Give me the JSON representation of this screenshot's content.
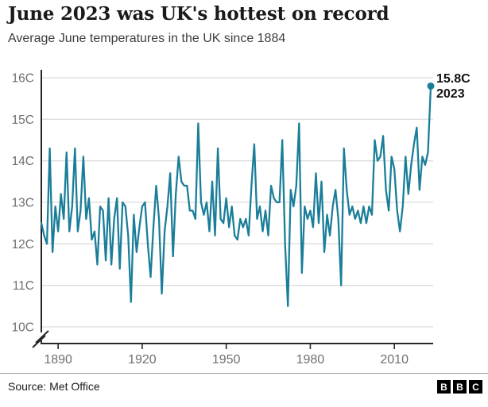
{
  "header": {
    "title": "June 2023 was UK's hottest on record",
    "subtitle": "Average June temperatures in the UK since 1884"
  },
  "chart_data": {
    "type": "line",
    "title": "June 2023 was UK's hottest on record",
    "subtitle": "Average June temperatures in the UK since 1884",
    "unit": "C",
    "start_year": 1884,
    "end_year": 2023,
    "values": [
      12.5,
      12.2,
      12.0,
      14.3,
      11.8,
      12.9,
      12.3,
      13.2,
      12.6,
      14.2,
      12.3,
      12.9,
      14.3,
      12.3,
      12.8,
      14.1,
      12.6,
      13.1,
      12.1,
      12.3,
      11.5,
      12.9,
      12.8,
      11.6,
      13.1,
      11.5,
      12.6,
      13.1,
      11.4,
      13.0,
      12.9,
      12.2,
      10.6,
      12.7,
      11.8,
      12.4,
      12.9,
      13.0,
      12.0,
      11.2,
      12.4,
      13.4,
      12.6,
      10.8,
      12.3,
      12.9,
      13.7,
      11.7,
      13.2,
      14.1,
      13.5,
      13.4,
      13.4,
      12.8,
      12.8,
      12.6,
      14.9,
      13.0,
      12.7,
      13.0,
      12.3,
      13.5,
      12.2,
      14.3,
      12.6,
      12.5,
      13.1,
      12.4,
      12.9,
      12.2,
      12.1,
      12.6,
      12.4,
      12.6,
      12.2,
      13.4,
      14.4,
      12.6,
      12.9,
      12.3,
      12.8,
      12.2,
      13.4,
      13.1,
      13.0,
      13.0,
      14.5,
      12.0,
      10.5,
      13.3,
      12.9,
      13.4,
      14.9,
      11.3,
      12.9,
      12.6,
      12.8,
      12.4,
      13.7,
      12.5,
      13.5,
      11.8,
      12.7,
      12.2,
      12.9,
      13.3,
      12.6,
      11.0,
      14.3,
      13.3,
      12.7,
      12.9,
      12.6,
      12.8,
      12.5,
      12.9,
      12.5,
      12.9,
      12.7,
      14.5,
      14.0,
      14.1,
      14.6,
      13.3,
      12.8,
      14.1,
      13.8,
      12.8,
      12.3,
      12.9,
      14.1,
      13.2,
      13.9,
      14.4,
      14.8,
      13.3,
      14.1,
      13.9,
      14.2,
      15.8
    ],
    "y_ticks": [
      {
        "value": 10,
        "label": "10C"
      },
      {
        "value": 11,
        "label": "11C"
      },
      {
        "value": 12,
        "label": "12C"
      },
      {
        "value": 13,
        "label": "13C"
      },
      {
        "value": 14,
        "label": "14C"
      },
      {
        "value": 15,
        "label": "15C"
      },
      {
        "value": 16,
        "label": "16C"
      }
    ],
    "x_ticks": [
      1890,
      1920,
      1950,
      1980,
      2010
    ],
    "ylim": [
      10,
      16
    ],
    "axis_break": true,
    "grid": true,
    "legend": "none",
    "annotation": {
      "year": 2023,
      "value": 15.8,
      "value_label": "15.8C",
      "year_label": "2023"
    },
    "colors": {
      "line": "#1B7E99",
      "marker": "#1B7E99",
      "grid": "#DDDDDD",
      "axis": "#262626",
      "tick_label": "#6F6F6F",
      "annotation_text": "#111111"
    }
  },
  "footer": {
    "source": "Source: Met Office",
    "logo_letters": [
      "B",
      "B",
      "C"
    ]
  }
}
